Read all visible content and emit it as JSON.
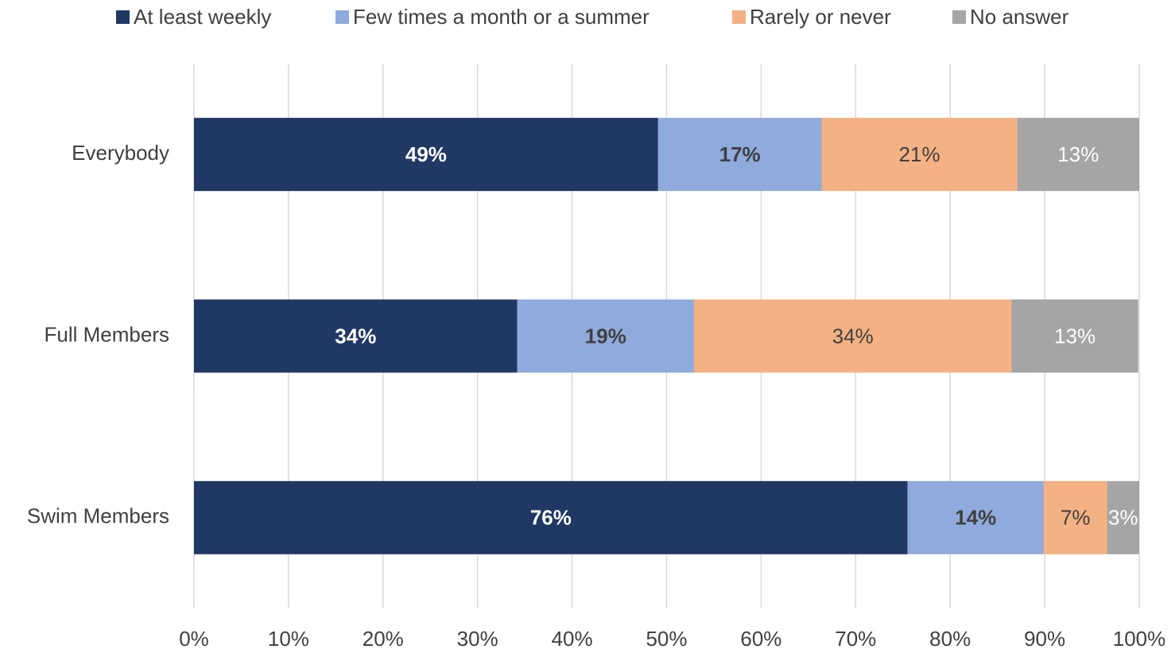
{
  "chart_data": {
    "type": "stacked-barh",
    "categories": [
      "Everybody",
      "Full Members",
      "Swim Members"
    ],
    "series": [
      {
        "name": "At least weekly",
        "color": "#203864",
        "values": [
          49.1,
          34.2,
          75.5
        ],
        "value_labels": [
          "49%",
          "34%",
          "76%"
        ]
      },
      {
        "name": "Few times a month or a summer",
        "color": "#8faadc",
        "values": [
          17.3,
          18.7,
          14.4
        ],
        "value_labels": [
          "17%",
          "19%",
          "14%"
        ]
      },
      {
        "name": "Rarely or never",
        "color": "#f4b183",
        "values": [
          20.7,
          33.6,
          6.7
        ],
        "value_labels": [
          "21%",
          "34%",
          "7%"
        ]
      },
      {
        "name": "No answer",
        "color": "#a5a5a5",
        "values": [
          12.9,
          13.4,
          3.4
        ],
        "value_labels": [
          "13%",
          "13%",
          "3%"
        ]
      }
    ],
    "xlim": [
      0,
      100
    ],
    "xticks": [
      {
        "value": 0,
        "label": "0%"
      },
      {
        "value": 10,
        "label": "10%"
      },
      {
        "value": 20,
        "label": "20%"
      },
      {
        "value": 30,
        "label": "30%"
      },
      {
        "value": 40,
        "label": "40%"
      },
      {
        "value": 50,
        "label": "50%"
      },
      {
        "value": 60,
        "label": "60%"
      },
      {
        "value": 70,
        "label": "70%"
      },
      {
        "value": 80,
        "label": "80%"
      },
      {
        "value": 90,
        "label": "90%"
      },
      {
        "value": 100,
        "label": "100%"
      }
    ],
    "grid": true,
    "legend": "top"
  }
}
